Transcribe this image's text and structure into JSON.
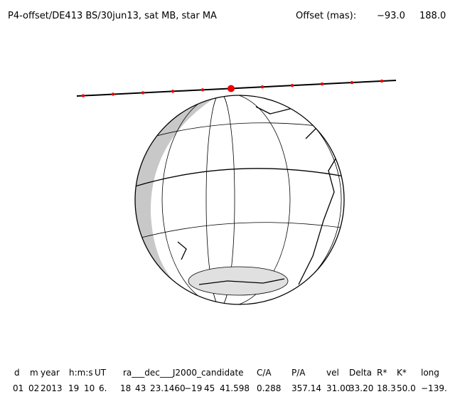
{
  "header": {
    "title": "P4-offset/DE413 BS/30jun13, sat MB, star MA",
    "offset_label": "Offset (mas):",
    "offset_ra": "−93.0",
    "offset_dec": "188.0"
  },
  "table": {
    "headers": [
      "d",
      "m",
      "year",
      "h:m:s",
      "UT",
      "ra___dec___J2000_candidate",
      "C/A",
      "P/A",
      "vel",
      "Delta",
      "R*",
      "K*",
      "long"
    ],
    "rows": [
      [
        "01",
        "02",
        "2013",
        "19",
        "10",
        "6.",
        "18",
        "43",
        "23.1460",
        "−19",
        "45",
        "41.598",
        "0.288",
        "357.14",
        "31.00",
        "33.20",
        "18.3",
        "50.0",
        "−139."
      ]
    ]
  }
}
